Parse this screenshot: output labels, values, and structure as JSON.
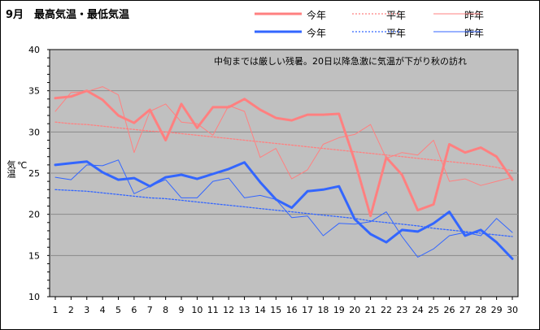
{
  "chart_data": {
    "type": "line",
    "title": "9月　最高気温・最低気温",
    "annotation": "中旬までは厳しい残暑。20日以降急激に気温が下がり秋の訪れ",
    "ylabel": "気温",
    "yunit": "℃",
    "ylim": [
      10,
      40
    ],
    "yticks": [
      10,
      15,
      20,
      25,
      30,
      35,
      40
    ],
    "grid": true,
    "legend_position": "top",
    "x": [
      1,
      2,
      3,
      4,
      5,
      6,
      7,
      8,
      9,
      10,
      11,
      12,
      13,
      14,
      15,
      16,
      17,
      18,
      19,
      20,
      21,
      22,
      23,
      24,
      25,
      26,
      27,
      28,
      29,
      30
    ],
    "series": [
      {
        "name": "今年",
        "group": "max",
        "style": "thick",
        "color": "#ff8080",
        "values": [
          34.1,
          34.3,
          35.0,
          33.9,
          32.0,
          31.1,
          32.7,
          29.0,
          33.4,
          30.5,
          33.0,
          33.0,
          34.0,
          32.7,
          31.7,
          31.4,
          32.1,
          32.1,
          32.2,
          26.5,
          19.8,
          26.9,
          24.8,
          20.5,
          21.2,
          28.5,
          27.5,
          28.1,
          27.0,
          24.2
        ]
      },
      {
        "name": "平年",
        "group": "max",
        "style": "dotted",
        "color": "#ff8080",
        "values": [
          31.2,
          31.0,
          30.9,
          30.7,
          30.5,
          30.3,
          30.1,
          30.0,
          29.8,
          29.6,
          29.4,
          29.2,
          29.0,
          28.8,
          28.6,
          28.4,
          28.2,
          28.0,
          27.8,
          27.6,
          27.4,
          27.2,
          27.0,
          26.8,
          26.6,
          26.4,
          26.2,
          26.0,
          25.7,
          25.3
        ]
      },
      {
        "name": "昨年",
        "group": "max",
        "style": "thin",
        "color": "#ff8080",
        "values": [
          32.5,
          34.8,
          34.9,
          35.5,
          34.5,
          27.5,
          32.5,
          33.4,
          31.2,
          31.0,
          29.6,
          33.2,
          32.5,
          26.9,
          28.0,
          24.3,
          25.4,
          28.5,
          29.3,
          29.7,
          30.9,
          26.8,
          27.5,
          27.2,
          29.0,
          24.0,
          24.3,
          23.5,
          24.0,
          24.5
        ]
      },
      {
        "name": "今年",
        "group": "min",
        "style": "thick",
        "color": "#3366ff",
        "values": [
          26.0,
          26.2,
          26.4,
          25.1,
          24.2,
          24.4,
          23.4,
          24.5,
          24.8,
          24.3,
          24.9,
          25.5,
          26.3,
          23.9,
          21.8,
          20.8,
          22.8,
          23.0,
          23.4,
          19.4,
          17.6,
          16.6,
          18.1,
          17.9,
          18.9,
          20.3,
          17.4,
          18.1,
          16.6,
          14.6
        ]
      },
      {
        "name": "平年",
        "group": "min",
        "style": "dotted",
        "color": "#3366ff",
        "values": [
          23.0,
          22.9,
          22.8,
          22.6,
          22.4,
          22.2,
          22.0,
          21.9,
          21.7,
          21.5,
          21.3,
          21.1,
          20.9,
          20.7,
          20.5,
          20.3,
          20.1,
          19.9,
          19.7,
          19.5,
          19.2,
          19.0,
          18.8,
          18.6,
          18.3,
          18.1,
          17.9,
          17.7,
          17.5,
          17.3
        ]
      },
      {
        "name": "昨年",
        "group": "min",
        "style": "thin",
        "color": "#3366ff",
        "values": [
          24.5,
          24.2,
          26.0,
          25.9,
          26.6,
          22.5,
          23.4,
          24.2,
          22.0,
          22.0,
          24.0,
          24.4,
          22.0,
          22.3,
          21.8,
          19.6,
          19.8,
          17.4,
          18.9,
          18.8,
          19.1,
          20.3,
          17.3,
          14.8,
          15.8,
          17.4,
          17.8,
          17.4,
          19.5,
          17.8
        ]
      }
    ]
  },
  "legend": {
    "max_this_year": "今年",
    "max_normal": "平年",
    "max_last_year": "昨年",
    "min_this_year": "今年",
    "min_normal": "平年",
    "min_last_year": "昨年"
  },
  "colors": {
    "plot_background": "#c0c0c0",
    "max_color": "#ff8080",
    "min_color": "#3366ff",
    "grid_color": "#8a8a8a"
  }
}
